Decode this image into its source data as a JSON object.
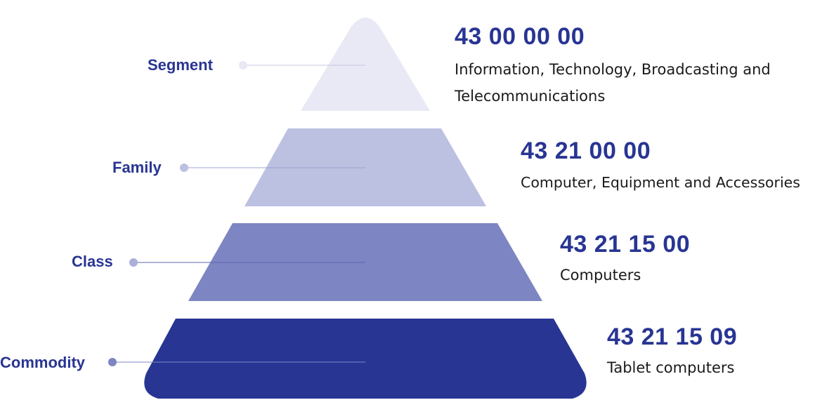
{
  "levels": [
    {
      "name": "Segment",
      "code": "43 00 00 00",
      "description": "Information, Technology, Broadcasting and Telecommunications",
      "color": "#e8e9f4"
    },
    {
      "name": "Family",
      "code": "43 21 00 00",
      "description": "Computer, Equipment and Accessories",
      "color": "#bcc0e1"
    },
    {
      "name": "Class",
      "code": "43 21 15 00",
      "description": "Computers",
      "color": "#7d86c3"
    },
    {
      "name": "Commodity",
      "code": "43 21 15 09",
      "description": "Tablet computers",
      "color": "#283593"
    }
  ],
  "accent_color": "#283593"
}
